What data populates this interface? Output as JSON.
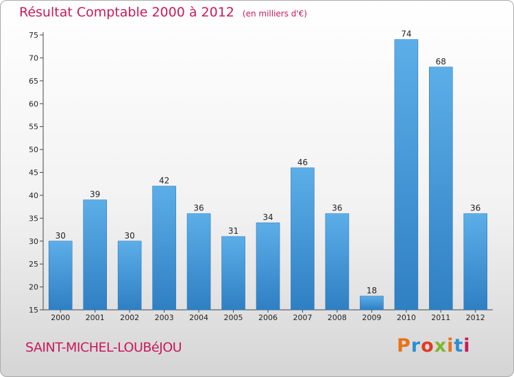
{
  "header": {
    "title": "Résultat Comptable 2000 à 2012",
    "subtitle": "(en milliers d'€)"
  },
  "footer": {
    "commune": "SAINT-MICHEL-LOUBéJOU",
    "logo": "Proxiti",
    "logo_colors": [
      "#e8731a",
      "#2a8fd4",
      "#e23b1f",
      "#7cb82f",
      "#e8731a",
      "#2a8fd4",
      "#c8195a"
    ]
  },
  "chart_data": {
    "type": "bar",
    "title": "Résultat Comptable 2000 à 2012",
    "subtitle": "(en milliers d'€)",
    "categories": [
      "2000",
      "2001",
      "2002",
      "2003",
      "2004",
      "2005",
      "2006",
      "2007",
      "2008",
      "2009",
      "2010",
      "2011",
      "2012"
    ],
    "values": [
      30,
      39,
      30,
      42,
      36,
      31,
      34,
      46,
      36,
      18,
      74,
      68,
      36
    ],
    "ylim": [
      15,
      75
    ],
    "yticks": [
      15,
      20,
      25,
      30,
      35,
      40,
      45,
      50,
      55,
      60,
      65,
      70,
      75
    ],
    "grid": false,
    "bar_color": "#3a8fd6"
  }
}
